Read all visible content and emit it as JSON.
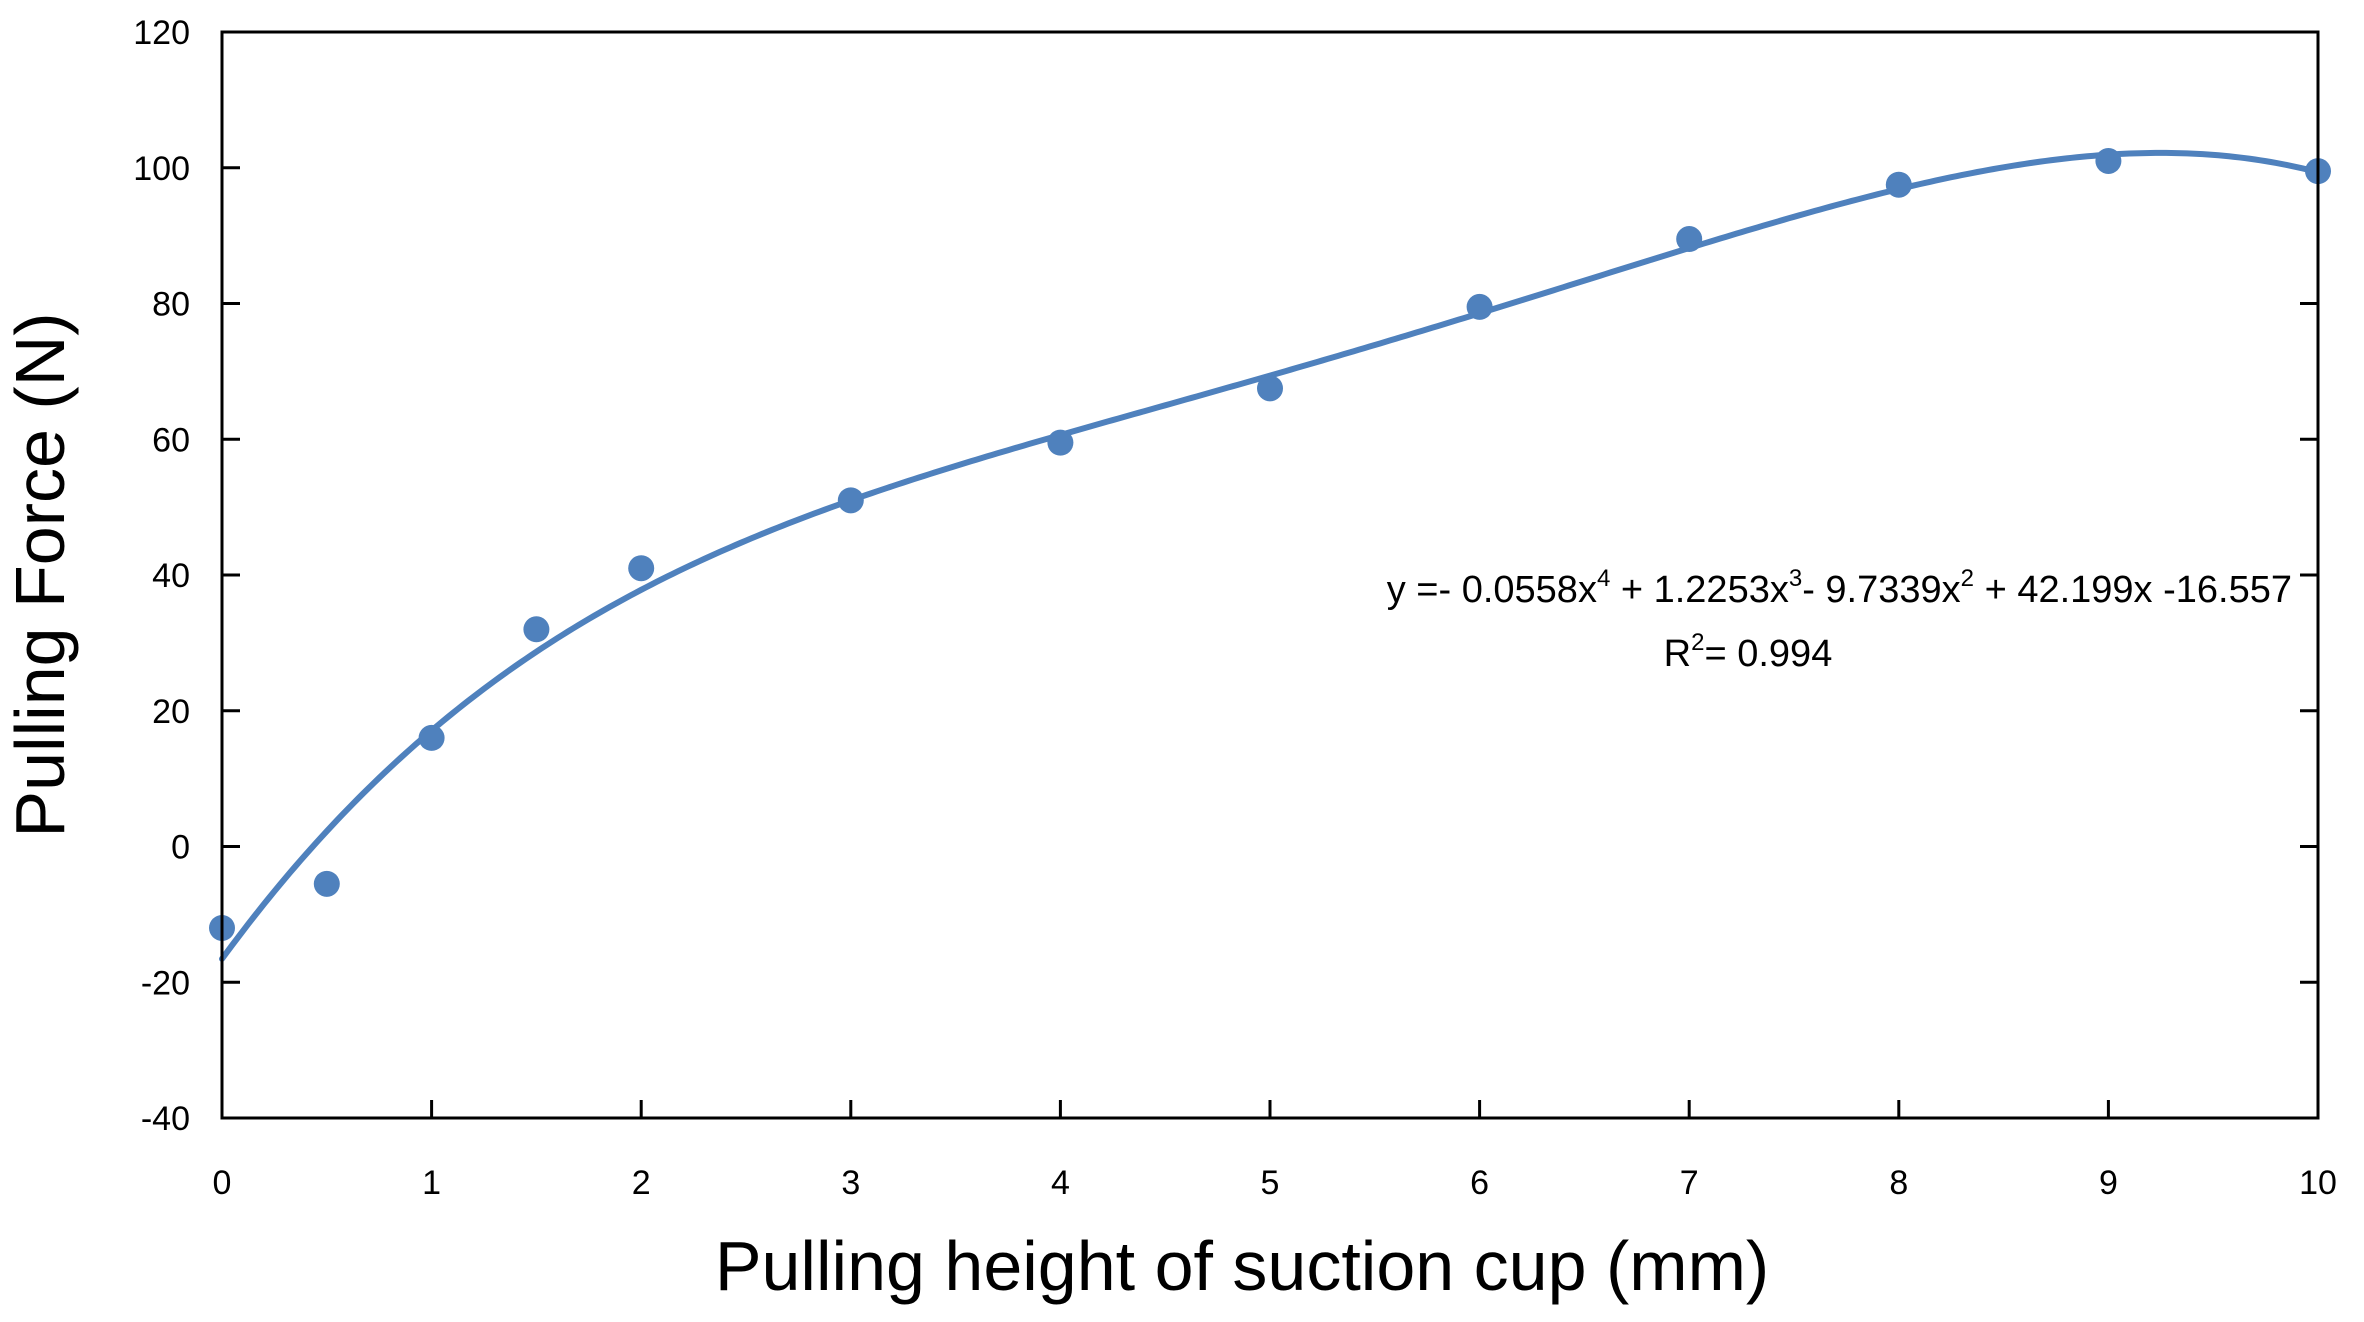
{
  "chart_data": {
    "type": "scatter",
    "xlabel": "Pulling height of suction cup (mm)",
    "ylabel": "Pulling Force (N)",
    "xlim": [
      0,
      10
    ],
    "ylim": [
      -40,
      120
    ],
    "x_ticks": [
      0,
      1,
      2,
      3,
      4,
      5,
      6,
      7,
      8,
      9,
      10
    ],
    "y_ticks": [
      -40,
      -20,
      0,
      20,
      40,
      60,
      80,
      100,
      120
    ],
    "x_tick_labels": [
      "0",
      "1",
      "2",
      "3",
      "4",
      "5",
      "6",
      "7",
      "8",
      "9",
      "10"
    ],
    "y_tick_labels": [
      "-40",
      "-20",
      "0",
      "20",
      "40",
      "60",
      "80",
      "100",
      "120"
    ],
    "grid": false,
    "legend": "none",
    "series": [
      {
        "type": "scatter",
        "color": "#4f81bd",
        "points": [
          {
            "x": 0,
            "y": -12
          },
          {
            "x": 0.5,
            "y": -5.5
          },
          {
            "x": 1,
            "y": 16
          },
          {
            "x": 1.5,
            "y": 32
          },
          {
            "x": 2,
            "y": 41
          },
          {
            "x": 3,
            "y": 51
          },
          {
            "x": 4,
            "y": 59.5
          },
          {
            "x": 5,
            "y": 67.5
          },
          {
            "x": 6,
            "y": 79.5
          },
          {
            "x": 7,
            "y": 89.5
          },
          {
            "x": 8,
            "y": 97.5
          },
          {
            "x": 9,
            "y": 101
          },
          {
            "x": 10,
            "y": 99.5
          }
        ]
      },
      {
        "type": "trendline",
        "kind": "polynomial",
        "order": 4,
        "color": "#4f81bd",
        "coefficients": [
          -16.557,
          42.199,
          -9.7339,
          1.2253,
          -0.0558
        ]
      }
    ],
    "annotation": {
      "equation": {
        "part1": "y =- 0.0558x",
        "sup1": "4",
        "part2": " + 1.2253x",
        "sup2": "3",
        "part3": "-  9.7339x",
        "sup3": "2",
        "part4": "  + 42.199x -16.557"
      },
      "r_squared": {
        "prefix": "R",
        "sup": "2",
        "value": "= 0.994"
      }
    }
  }
}
